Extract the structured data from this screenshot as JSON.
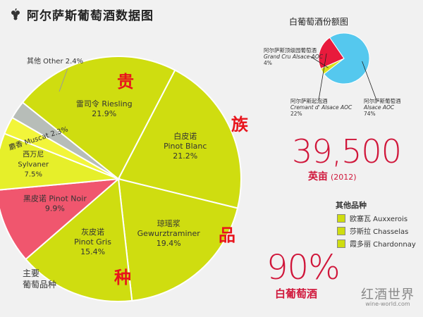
{
  "header": {
    "title": "阿尔萨斯葡萄酒数据图",
    "icon": "grape-icon"
  },
  "chart_data": [
    {
      "type": "pie",
      "title": "",
      "subtitle": "",
      "categories": [
        {
          "name": "其他 Other",
          "value": 2.4,
          "color": "#b7bdb8"
        },
        {
          "name": "雷司令 Riesling",
          "value": 21.9,
          "color": "#cfdd10"
        },
        {
          "name": "白皮诺 Pinot Blanc",
          "value": 21.2,
          "color": "#cfdd10"
        },
        {
          "name": "琼瑶浆 Gewurztraminer",
          "value": 19.4,
          "color": "#cfdd10"
        },
        {
          "name": "灰皮诺 Pinot Gris",
          "value": 15.4,
          "color": "#cfdd10"
        },
        {
          "name": "黑皮诺 Pinot Noir",
          "value": 9.9,
          "color": "#f0566e"
        },
        {
          "name": "西万尼 Sylvaner",
          "value": 7.5,
          "color": "#e6ef2a"
        },
        {
          "name": "麝香 Muscat",
          "value": 2.3,
          "color": "#f2f53a"
        }
      ],
      "labels": [
        {
          "lines": [
            "其他 Other 2.4%"
          ],
          "size": 10
        },
        {
          "lines": [
            "雷司令 Riesling",
            "21.9%"
          ],
          "size": 11
        },
        {
          "lines": [
            "白皮诺",
            "Pinot Blanc",
            "21.2%"
          ],
          "size": 11
        },
        {
          "lines": [
            "琼瑶浆",
            "Gewurztraminer",
            "19.4%"
          ],
          "size": 11
        },
        {
          "lines": [
            "灰皮诺",
            "Pinot Gris",
            "15.4%"
          ],
          "size": 11
        },
        {
          "lines": [
            "黑皮诺 Pinot Noir",
            "9.9%"
          ],
          "size": 11
        },
        {
          "lines": [
            "西万尼",
            "Sylvaner",
            "7.5%"
          ],
          "size": 10
        },
        {
          "lines": [
            "麝香 Muscat 2.3%"
          ],
          "size": 10
        }
      ],
      "overlay_chars": [
        "贵",
        "族",
        "品",
        "种"
      ],
      "overlay_color": "#e8141c"
    },
    {
      "type": "pie",
      "title": "白葡萄酒份额图",
      "categories": [
        {
          "name": "阿尔萨斯顶级园葡萄酒 Grand Cru Alsace AOC",
          "value": 4,
          "color": "#d9e21a"
        },
        {
          "name": "阿尔萨斯起泡酒 Cremant d' Alsace AOC",
          "value": 22,
          "color": "#e81a3c"
        },
        {
          "name": "阿尔萨斯葡萄酒 Alsace AOC",
          "value": 74,
          "color": "#55c8ee"
        }
      ],
      "labels": [
        {
          "cn": "阿尔萨斯顶级园葡萄酒",
          "en": "Grand Cru Alsace AOC",
          "pct": "4%"
        },
        {
          "cn": "阿尔萨斯起泡酒",
          "en": "Cremant d' Alsace AOC",
          "pct": "22%"
        },
        {
          "cn": "阿尔萨斯葡萄酒",
          "en": "Alsace AOC",
          "pct": "74%"
        }
      ]
    }
  ],
  "stats": {
    "area_value": "39,500",
    "area_unit": "英亩",
    "area_year": "(2012)",
    "white_share": "90%",
    "white_label": "白葡萄酒"
  },
  "legend": {
    "title": "其他品种",
    "items": [
      {
        "label": "欧塞瓦 Auxxerois",
        "color": "#cfdd10"
      },
      {
        "label": "莎斯拉 Chasselas",
        "color": "#cfdd10"
      },
      {
        "label": "霞多丽 Chardonnay",
        "color": "#cfdd10"
      }
    ]
  },
  "footer": {
    "main_label_1": "主要",
    "main_label_2": "葡萄品种",
    "brand": "红酒世界",
    "brand_url": "wine-world.com"
  }
}
